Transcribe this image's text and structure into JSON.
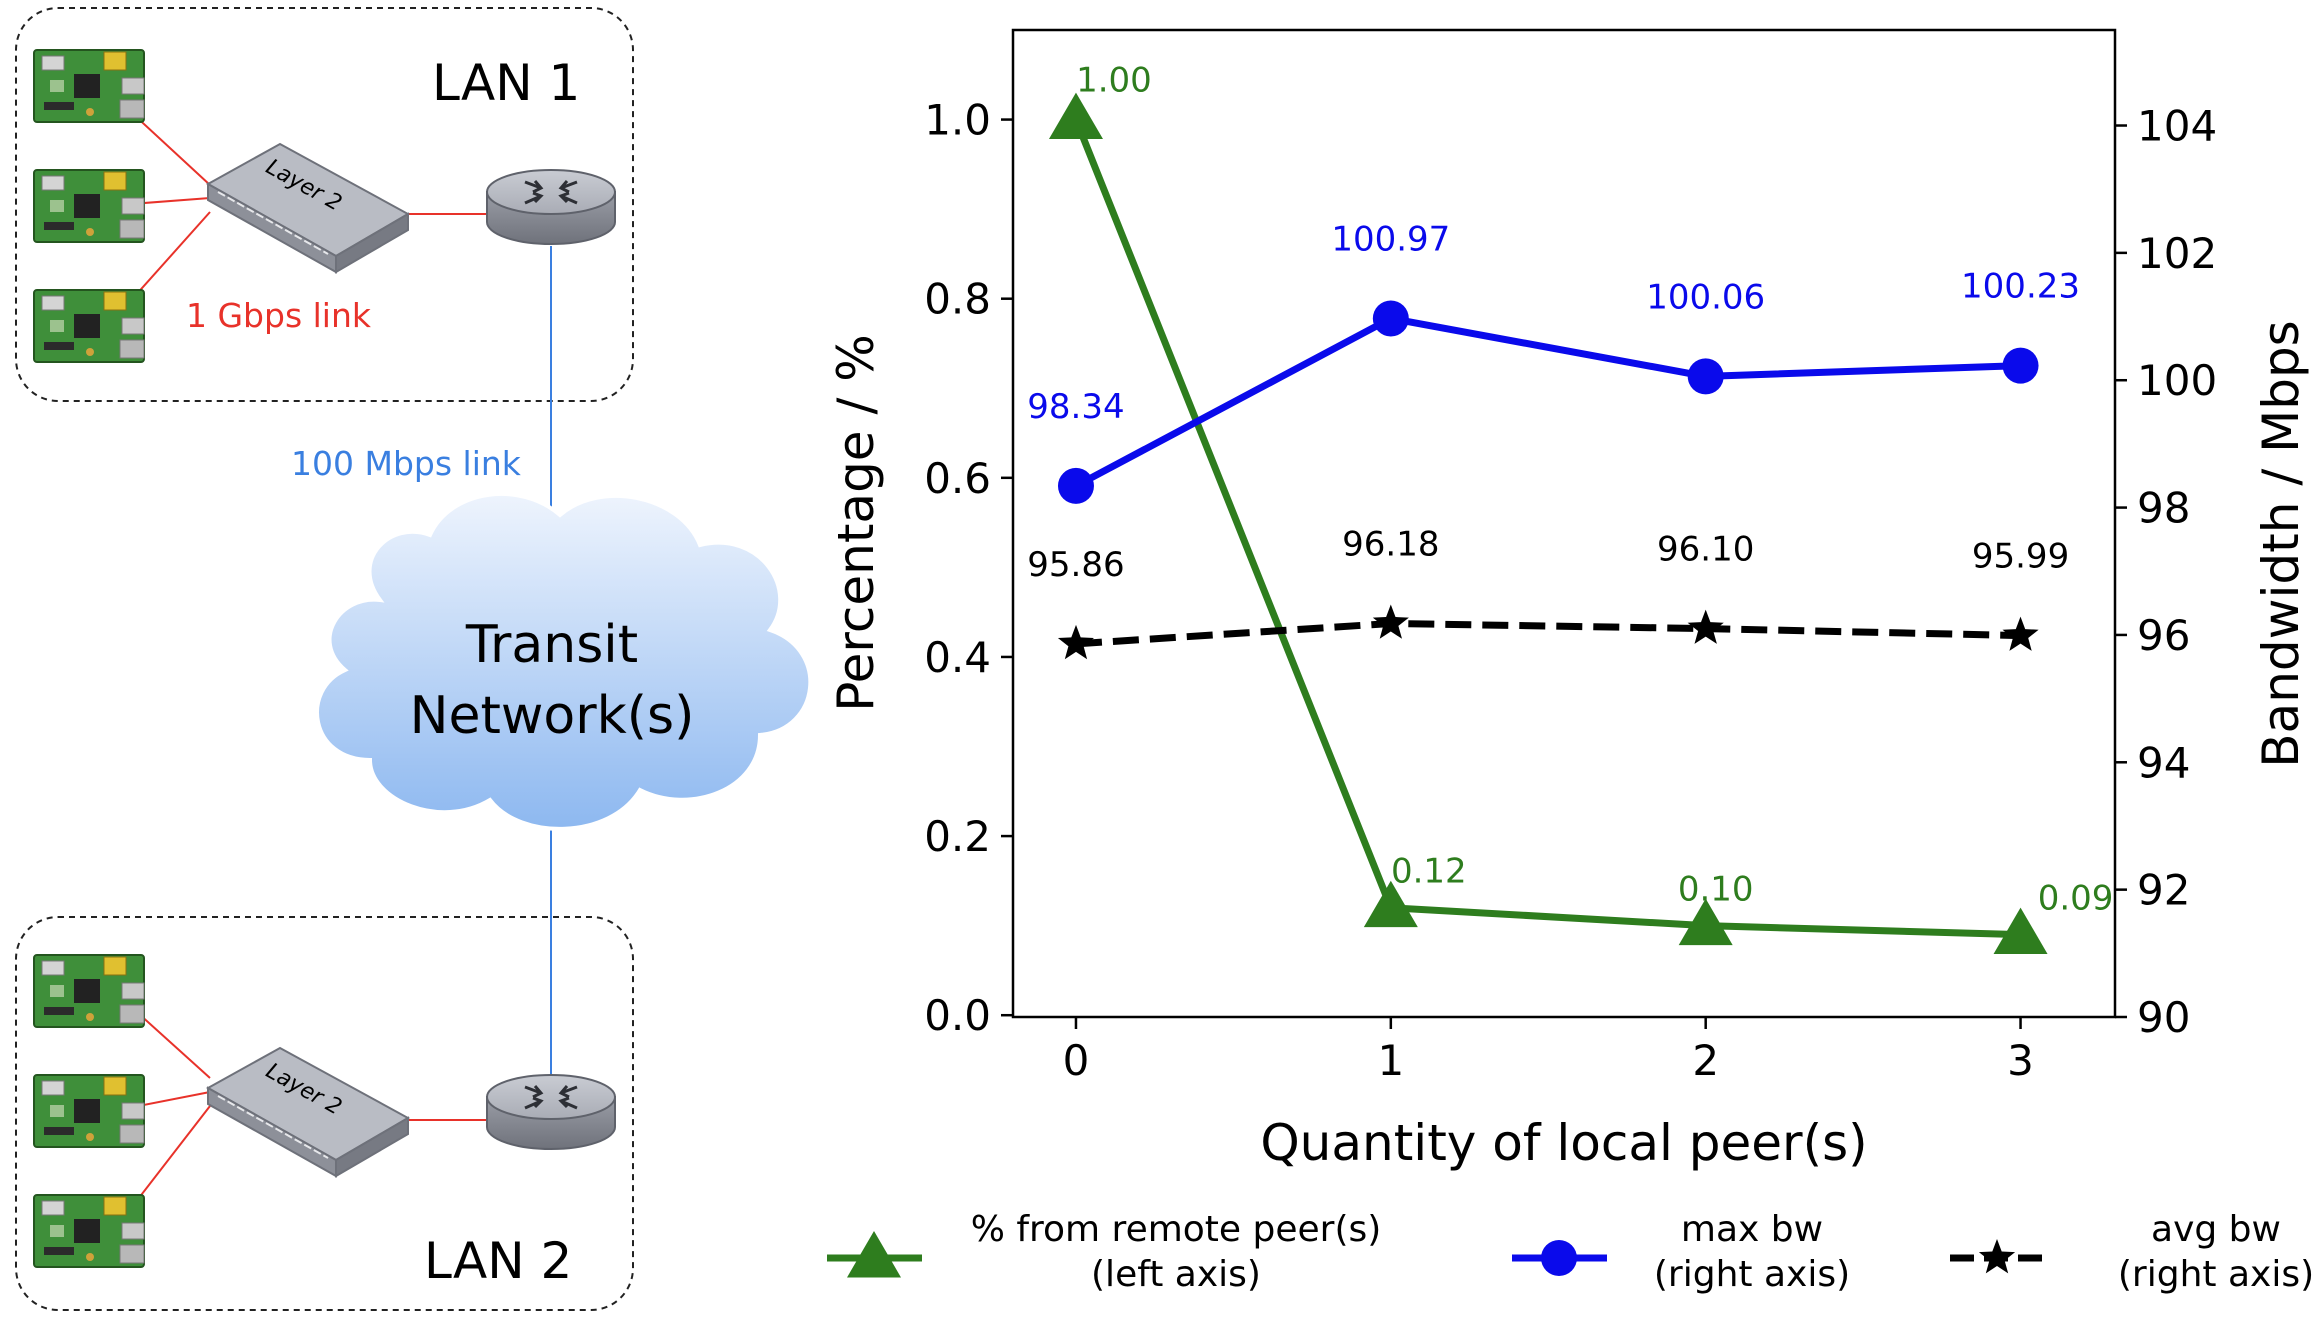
{
  "diagram": {
    "lan1_label": "LAN 1",
    "lan2_label": "LAN 2",
    "switch_label": "Layer 2",
    "gbps_link_label": "1 Gbps link",
    "mbps_link_label": "100 Mbps link",
    "cloud_line1": "Transit",
    "cloud_line2": "Network(s)",
    "colors": {
      "gbps_link": "#e8322a",
      "mbps_link": "#3a7fe0",
      "cloud_top": "#eef4fd",
      "cloud_bottom": "#8db8f0"
    }
  },
  "chart_data": {
    "type": "line",
    "xlabel": "Quantity of local peer(s)",
    "ylabel_left": "Percentage / %",
    "ylabel_right": "Bandwidth / Mbps",
    "x": [
      0,
      1,
      2,
      3
    ],
    "x_ticks": [
      "0",
      "1",
      "2",
      "3"
    ],
    "xlim": [
      -0.2,
      3.3
    ],
    "ylim_left": [
      -0.002,
      1.1
    ],
    "ylim_right": [
      90,
      105.5
    ],
    "left_ticks": [
      "0.0",
      "0.2",
      "0.4",
      "0.6",
      "0.8",
      "1.0"
    ],
    "right_ticks": [
      "90",
      "92",
      "94",
      "96",
      "98",
      "100",
      "102",
      "104"
    ],
    "series": [
      {
        "name": "% from remote peer(s)",
        "legend_line2": "(left axis)",
        "axis": "left",
        "values": [
          1.0,
          0.12,
          0.1,
          0.09
        ],
        "labels": [
          "1.00",
          "0.12",
          "0.10",
          "0.09"
        ],
        "color": "#2e7d1e",
        "marker": "triangle",
        "style": "solid"
      },
      {
        "name": "max bw",
        "legend_line2": "(right axis)",
        "axis": "right",
        "values": [
          98.34,
          100.97,
          100.06,
          100.23
        ],
        "labels": [
          "98.34",
          "100.97",
          "100.06",
          "100.23"
        ],
        "color": "#0a0aeb",
        "marker": "circle",
        "style": "solid"
      },
      {
        "name": "avg bw",
        "legend_line2": "(right axis)",
        "axis": "right",
        "values": [
          95.86,
          96.18,
          96.1,
          95.99
        ],
        "labels": [
          "95.86",
          "96.18",
          "96.10",
          "95.99"
        ],
        "color": "#000000",
        "marker": "star",
        "style": "dashed"
      }
    ]
  }
}
